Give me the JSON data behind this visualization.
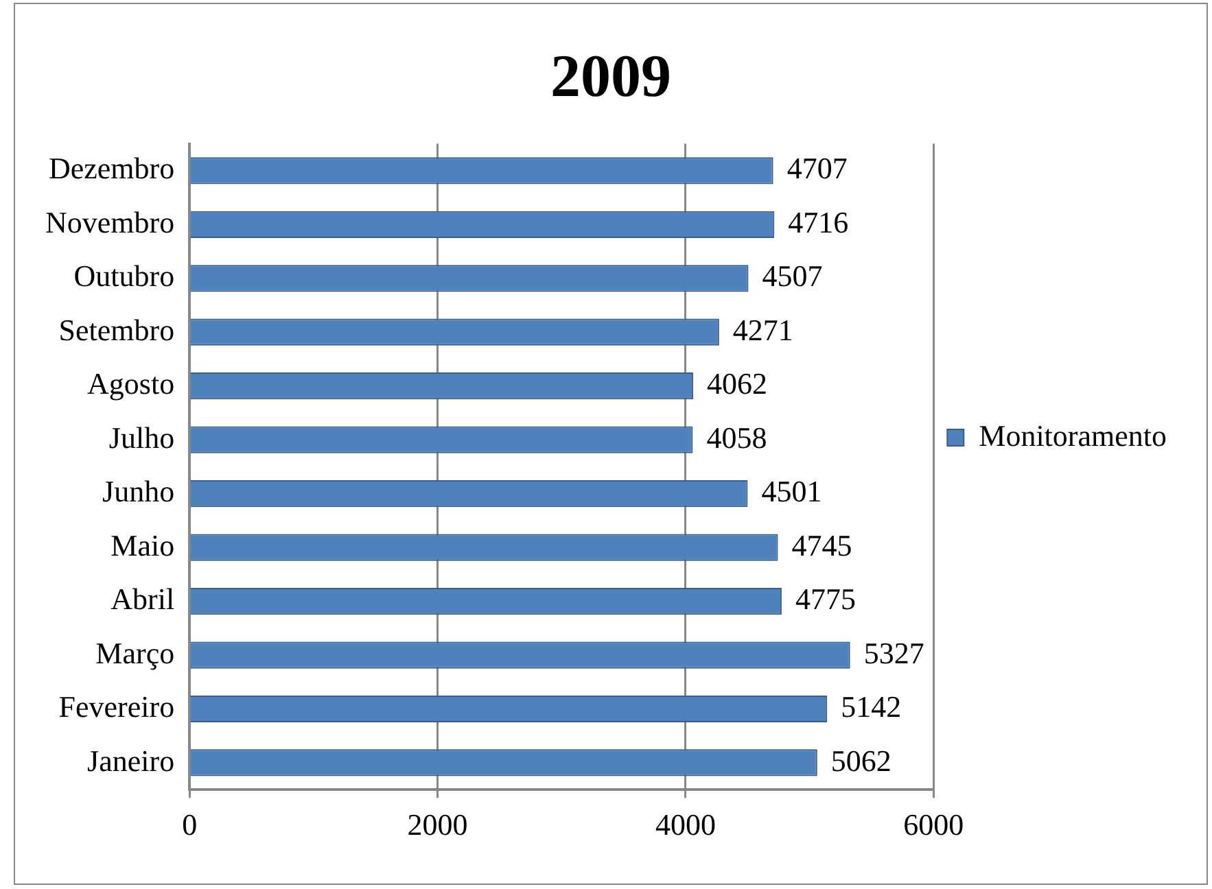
{
  "chart_data": {
    "type": "bar",
    "title": "2009",
    "orientation": "horizontal",
    "categories": [
      "Dezembro",
      "Novembro",
      "Outubro",
      "Setembro",
      "Agosto",
      "Julho",
      "Junho",
      "Maio",
      "Abril",
      "Março",
      "Fevereiro",
      "Janeiro"
    ],
    "series": [
      {
        "name": "Monitoramento",
        "color": "#4f81bd",
        "values": [
          4707,
          4716,
          4507,
          4271,
          4062,
          4058,
          4501,
          4745,
          4775,
          5327,
          5142,
          5062
        ]
      }
    ],
    "xlim": [
      0,
      6000
    ],
    "xticks": [
      0,
      2000,
      4000,
      6000
    ],
    "grid": "x",
    "legend": "right",
    "data_labels": true
  }
}
